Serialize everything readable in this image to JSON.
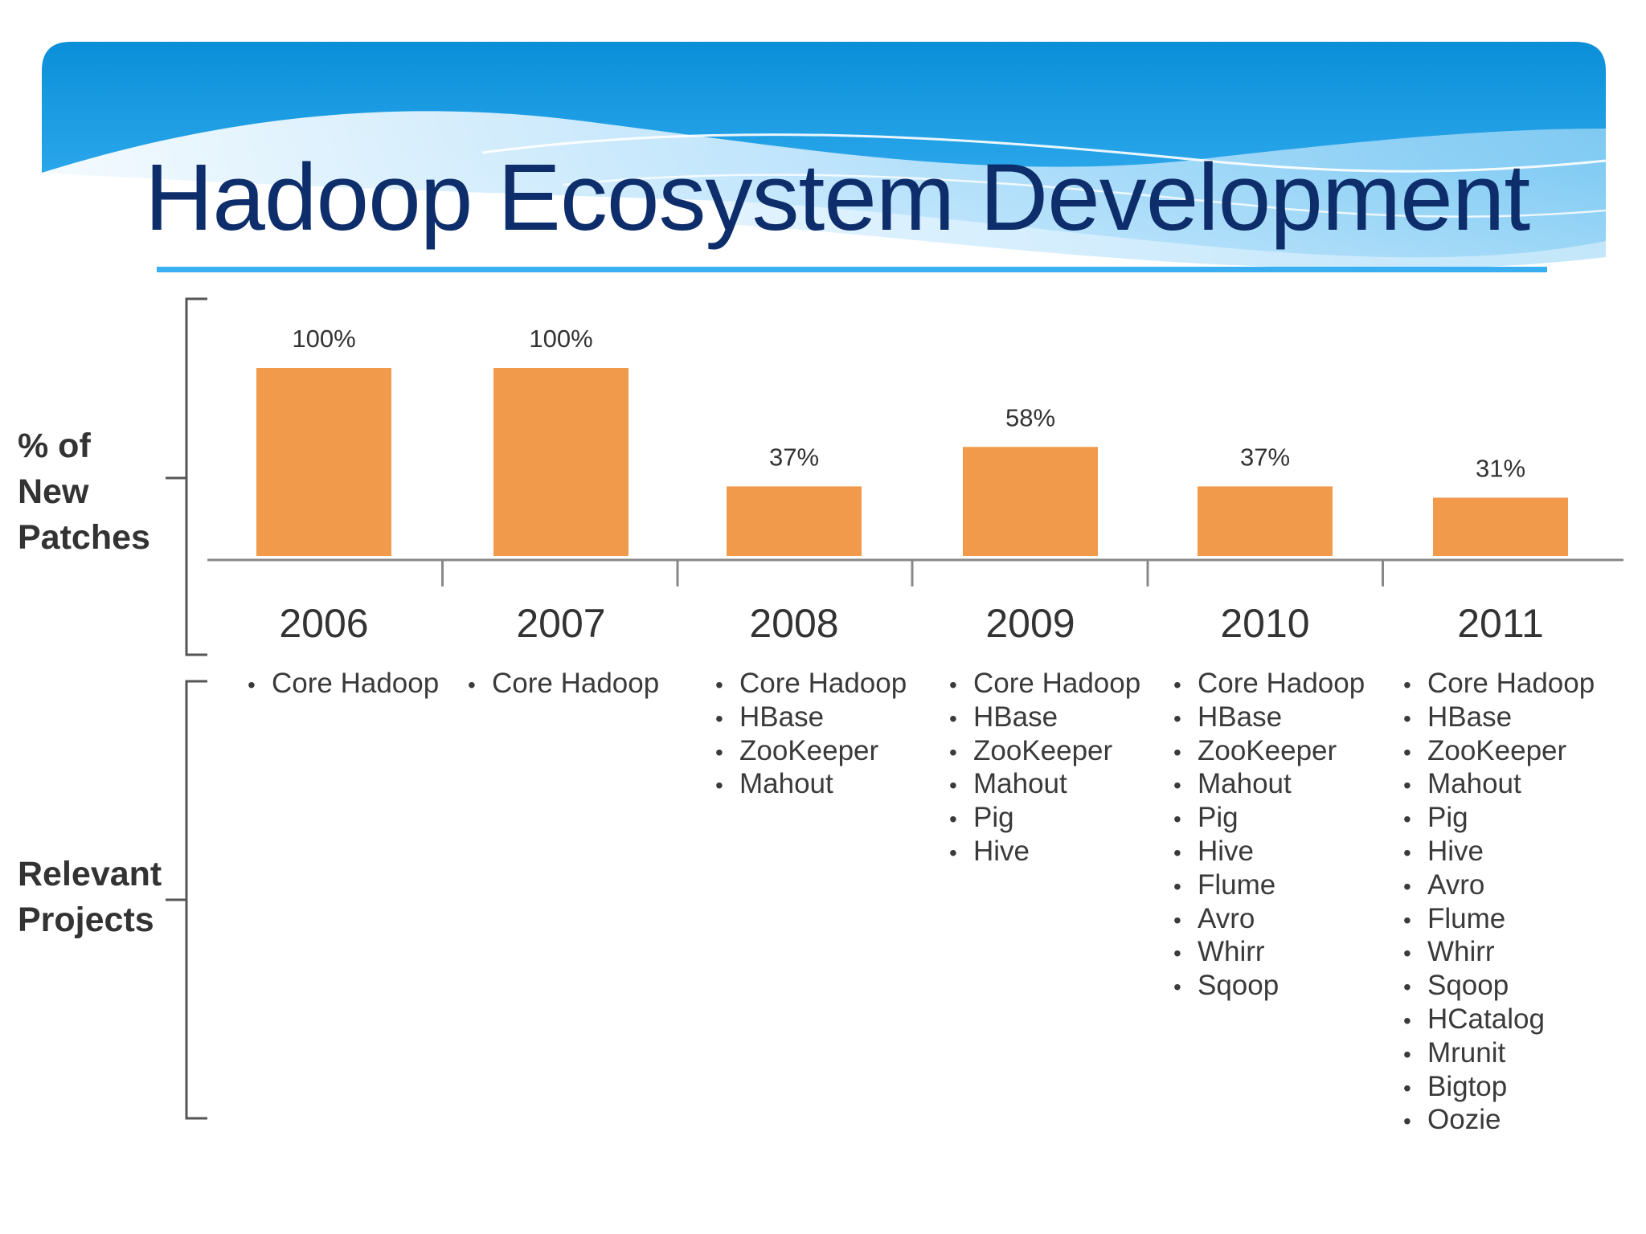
{
  "slide": {
    "title": "Hadoop Ecosystem Development",
    "accent_color": "#39aef0",
    "title_color": "#0d2d6b"
  },
  "row_labels": {
    "patches": [
      "% of",
      "New",
      "Patches"
    ],
    "projects": [
      "Relevant",
      "Projects"
    ]
  },
  "chart_data": {
    "type": "bar",
    "title": "",
    "xlabel": "",
    "ylabel": "% of New Patches",
    "categories": [
      "2006",
      "2007",
      "2008",
      "2009",
      "2010",
      "2011"
    ],
    "values": [
      100,
      100,
      37,
      58,
      37,
      31
    ],
    "data_labels": [
      "100%",
      "100%",
      "37%",
      "58%",
      "37%",
      "31%"
    ],
    "ylim": [
      0,
      100
    ],
    "grid": false,
    "legend": "none",
    "bar_color": "#f29a4c"
  },
  "projects": [
    {
      "year": "2006",
      "items": [
        "Core Hadoop"
      ]
    },
    {
      "year": "2007",
      "items": [
        "Core Hadoop"
      ]
    },
    {
      "year": "2008",
      "items": [
        "Core Hadoop",
        "HBase",
        "ZooKeeper",
        "Mahout"
      ]
    },
    {
      "year": "2009",
      "items": [
        "Core Hadoop",
        "HBase",
        "ZooKeeper",
        "Mahout",
        "Pig",
        "Hive"
      ]
    },
    {
      "year": "2010",
      "items": [
        "Core Hadoop",
        "HBase",
        "ZooKeeper",
        "Mahout",
        "Pig",
        "Hive",
        "Flume",
        "Avro",
        "Whirr",
        "Sqoop"
      ]
    },
    {
      "year": "2011",
      "items": [
        "Core Hadoop",
        "HBase",
        "ZooKeeper",
        "Mahout",
        "Pig",
        "Hive",
        "Avro",
        "Flume",
        "Whirr",
        "Sqoop",
        "HCatalog",
        "Mrunit",
        "Bigtop",
        "Oozie"
      ]
    }
  ]
}
